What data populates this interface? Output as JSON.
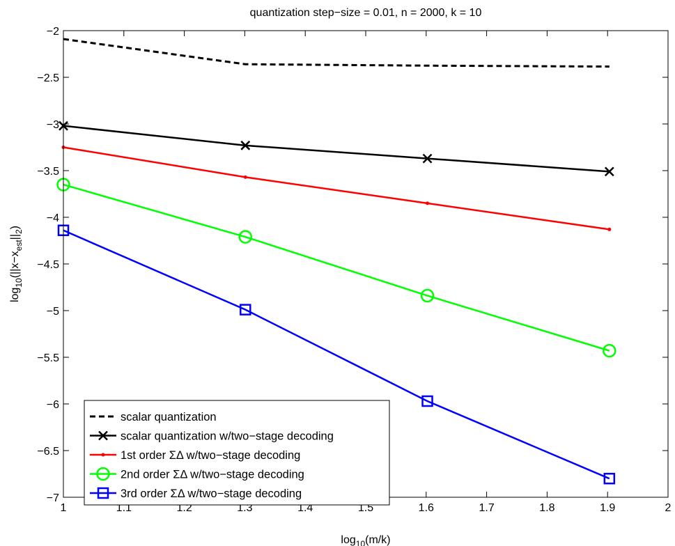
{
  "chart_data": {
    "type": "line",
    "title": "quantization step−size = 0.01, n = 2000, k = 10",
    "xlabel": {
      "pre": "log",
      "sub": "10",
      "post": "(m/k)"
    },
    "ylabel": {
      "p1": "log",
      "s1": "10",
      "p2": "(||x−x",
      "s2": "est",
      "p3": "||",
      "s3": "2",
      "p4": ")"
    },
    "xlim": [
      1,
      2
    ],
    "ylim": [
      -7,
      -2
    ],
    "xticks": [
      1,
      1.1,
      1.2,
      1.3,
      1.4,
      1.5,
      1.6,
      1.7,
      1.8,
      1.9,
      2
    ],
    "xtick_labels": [
      "1",
      "1.1",
      "1.2",
      "1.3",
      "1.4",
      "1.5",
      "1.6",
      "1.7",
      "1.8",
      "1.9",
      "2"
    ],
    "yticks": [
      -2,
      -2.5,
      -3,
      -3.5,
      -4,
      -4.5,
      -5,
      -5.5,
      -6,
      -6.5,
      -7
    ],
    "ytick_labels": [
      "−2",
      "−2.5",
      "−3",
      "−3.5",
      "−4",
      "−4.5",
      "−5",
      "−5.5",
      "−6",
      "−6.5",
      "−7"
    ],
    "grid": false,
    "legend_position": "bottom-left",
    "series": [
      {
        "name": "scalar quantization",
        "color": "#000000",
        "style": "dashed",
        "marker": "none",
        "x": [
          1,
          1.301,
          1.602,
          1.903
        ],
        "y": [
          -2.09,
          -2.36,
          -2.375,
          -2.385
        ]
      },
      {
        "name": "scalar quantization w/two−stage decoding",
        "color": "#000000",
        "style": "solid",
        "marker": "x",
        "x": [
          1,
          1.301,
          1.602,
          1.903
        ],
        "y": [
          -3.02,
          -3.23,
          -3.37,
          -3.51
        ]
      },
      {
        "name": "1st order ΣΔ w/two−stage decoding",
        "color": "#ff0000",
        "style": "solid",
        "marker": "dot",
        "x": [
          1,
          1.301,
          1.602,
          1.903
        ],
        "y": [
          -3.25,
          -3.57,
          -3.85,
          -4.13
        ]
      },
      {
        "name": "2nd order ΣΔ w/two−stage decoding",
        "color": "#00ff00",
        "style": "solid",
        "marker": "circle",
        "x": [
          1,
          1.301,
          1.602,
          1.903
        ],
        "y": [
          -3.65,
          -4.21,
          -4.84,
          -5.43
        ]
      },
      {
        "name": "3rd order ΣΔ w/two−stage decoding",
        "color": "#0000ff",
        "style": "solid",
        "marker": "square",
        "x": [
          1,
          1.301,
          1.602,
          1.903
        ],
        "y": [
          -4.14,
          -4.99,
          -5.97,
          -6.8
        ]
      }
    ]
  }
}
